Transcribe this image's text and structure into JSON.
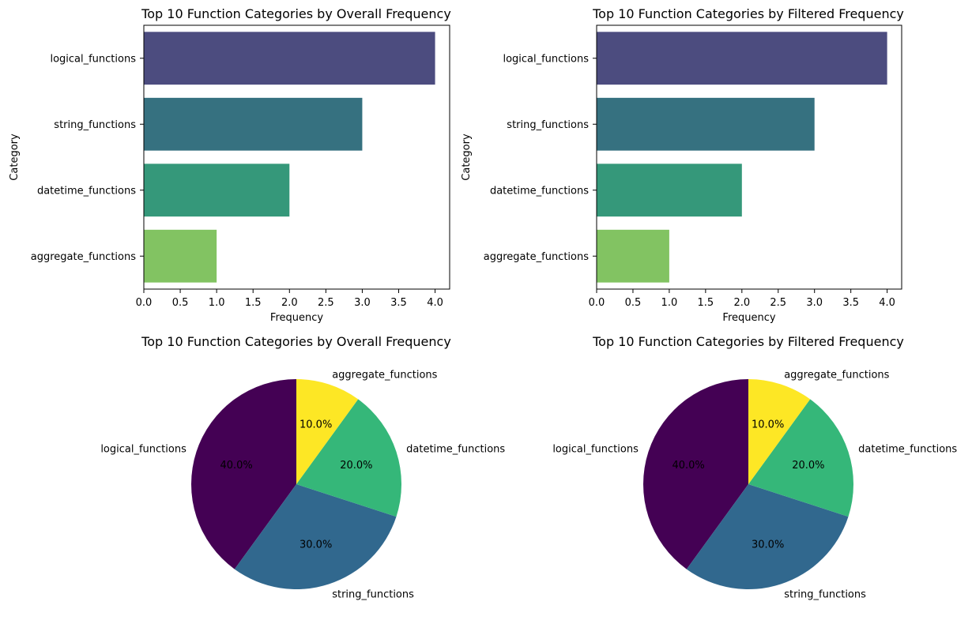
{
  "chart_data": [
    {
      "type": "bar",
      "orientation": "horizontal",
      "title": "Top 10 Function Categories by Overall Frequency",
      "xlabel": "Frequency",
      "ylabel": "Category",
      "categories": [
        "logical_functions",
        "string_functions",
        "datetime_functions",
        "aggregate_functions"
      ],
      "values": [
        4,
        3,
        2,
        1
      ],
      "colors": [
        "#4c4c7f",
        "#367180",
        "#35987a",
        "#82c362"
      ],
      "xlim": [
        0,
        4.2
      ],
      "xticks": [
        "0.0",
        "0.5",
        "1.0",
        "1.5",
        "2.0",
        "2.5",
        "3.0",
        "3.5",
        "4.0"
      ],
      "grid": false
    },
    {
      "type": "bar",
      "orientation": "horizontal",
      "title": "Top 10 Function Categories by Filtered Frequency",
      "xlabel": "Frequency",
      "ylabel": "Category",
      "categories": [
        "logical_functions",
        "string_functions",
        "datetime_functions",
        "aggregate_functions"
      ],
      "values": [
        4,
        3,
        2,
        1
      ],
      "colors": [
        "#4c4c7f",
        "#367180",
        "#35987a",
        "#82c362"
      ],
      "xlim": [
        0,
        4.2
      ],
      "xticks": [
        "0.0",
        "0.5",
        "1.0",
        "1.5",
        "2.0",
        "2.5",
        "3.0",
        "3.5",
        "4.0"
      ],
      "grid": false
    },
    {
      "type": "pie",
      "title": "Top 10 Function Categories by Overall Frequency",
      "labels": [
        "logical_functions",
        "string_functions",
        "datetime_functions",
        "aggregate_functions"
      ],
      "values": [
        4,
        3,
        2,
        1
      ],
      "percent_labels": [
        "40.0%",
        "30.0%",
        "20.0%",
        "10.0%"
      ],
      "colors": [
        "#440154",
        "#31688e",
        "#35b779",
        "#fde725"
      ],
      "start_angle": 90,
      "direction": "counterclockwise"
    },
    {
      "type": "pie",
      "title": "Top 10 Function Categories by Filtered Frequency",
      "labels": [
        "logical_functions",
        "string_functions",
        "datetime_functions",
        "aggregate_functions"
      ],
      "values": [
        4,
        3,
        2,
        1
      ],
      "percent_labels": [
        "40.0%",
        "30.0%",
        "20.0%",
        "10.0%"
      ],
      "colors": [
        "#440154",
        "#31688e",
        "#35b779",
        "#fde725"
      ],
      "start_angle": 90,
      "direction": "counterclockwise"
    }
  ]
}
